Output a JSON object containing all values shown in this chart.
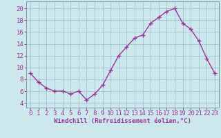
{
  "x": [
    0,
    1,
    2,
    3,
    4,
    5,
    6,
    7,
    8,
    9,
    10,
    11,
    12,
    13,
    14,
    15,
    16,
    17,
    18,
    19,
    20,
    21,
    22,
    23
  ],
  "y": [
    9.0,
    7.5,
    6.5,
    6.0,
    6.0,
    5.5,
    6.0,
    4.5,
    5.5,
    7.0,
    9.5,
    12.0,
    13.5,
    15.0,
    15.5,
    17.5,
    18.5,
    19.5,
    20.0,
    17.5,
    16.5,
    14.5,
    11.5,
    9.0
  ],
  "line_color": "#993399",
  "marker": "+",
  "bg_color": "#cce8ec",
  "grid_color": "#99bbcc",
  "xlabel": "Windchill (Refroidissement éolien,°C)",
  "ytick_labels": [
    "4",
    "6",
    "8",
    "10",
    "12",
    "14",
    "16",
    "18",
    "20"
  ],
  "ytick_vals": [
    4,
    6,
    8,
    10,
    12,
    14,
    16,
    18,
    20
  ],
  "xlim": [
    -0.5,
    23.5
  ],
  "ylim": [
    3.2,
    21.2
  ],
  "xlabel_color": "#993399",
  "tick_color": "#993399",
  "xlabel_fontsize": 6.5,
  "tick_fontsize": 6.5,
  "linewidth": 1.0,
  "markersize": 4,
  "spine_color": "#7799aa"
}
